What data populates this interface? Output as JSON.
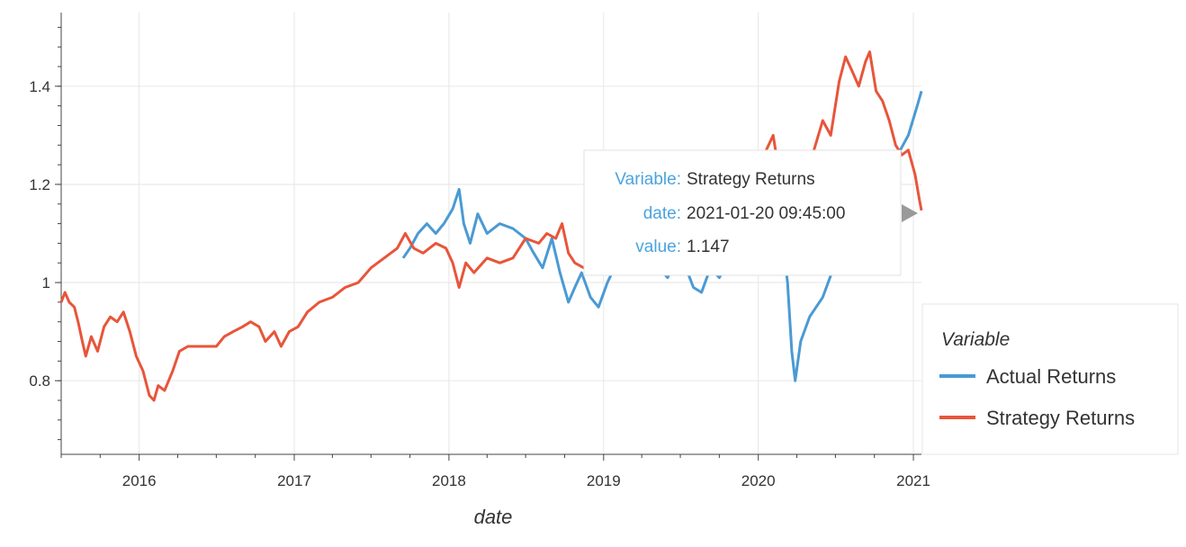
{
  "chart_data": {
    "type": "line",
    "xlabel": "date",
    "ylabel": "",
    "xlim": [
      "2015-07-01",
      "2021-01-20"
    ],
    "ylim": [
      0.65,
      1.55
    ],
    "x_ticks": [
      "2016",
      "2017",
      "2018",
      "2019",
      "2020",
      "2021"
    ],
    "y_ticks": [
      {
        "value": 0.8,
        "label": "0.8"
      },
      {
        "value": 1.0,
        "label": "1"
      },
      {
        "value": 1.2,
        "label": "1.2"
      },
      {
        "value": 1.4,
        "label": "1.4"
      }
    ],
    "grid": true,
    "legend": {
      "title": "Variable",
      "placement": "right"
    },
    "series": [
      {
        "name": "Actual Returns",
        "color": "#4a9ad4",
        "points": [
          [
            "2017-09-15",
            1.05
          ],
          [
            "2017-10-01",
            1.07
          ],
          [
            "2017-10-20",
            1.1
          ],
          [
            "2017-11-10",
            1.12
          ],
          [
            "2017-12-01",
            1.1
          ],
          [
            "2017-12-20",
            1.12
          ],
          [
            "2018-01-10",
            1.15
          ],
          [
            "2018-01-25",
            1.19
          ],
          [
            "2018-02-05",
            1.12
          ],
          [
            "2018-02-20",
            1.08
          ],
          [
            "2018-03-10",
            1.14
          ],
          [
            "2018-04-01",
            1.1
          ],
          [
            "2018-05-01",
            1.12
          ],
          [
            "2018-06-01",
            1.11
          ],
          [
            "2018-07-01",
            1.09
          ],
          [
            "2018-07-20",
            1.06
          ],
          [
            "2018-08-10",
            1.03
          ],
          [
            "2018-09-01",
            1.09
          ],
          [
            "2018-09-20",
            1.02
          ],
          [
            "2018-10-10",
            0.96
          ],
          [
            "2018-10-25",
            0.99
          ],
          [
            "2018-11-10",
            1.02
          ],
          [
            "2018-12-01",
            0.97
          ],
          [
            "2018-12-20",
            0.95
          ],
          [
            "2019-01-10",
            1.0
          ],
          [
            "2019-02-01",
            1.04
          ],
          [
            "2019-03-01",
            1.07
          ],
          [
            "2019-04-01",
            1.08
          ],
          [
            "2019-05-01",
            1.04
          ],
          [
            "2019-06-01",
            1.01
          ],
          [
            "2019-07-01",
            1.06
          ],
          [
            "2019-08-01",
            0.99
          ],
          [
            "2019-08-20",
            0.98
          ],
          [
            "2019-09-10",
            1.03
          ],
          [
            "2019-10-01",
            1.01
          ],
          [
            "2019-11-01",
            1.06
          ],
          [
            "2019-12-01",
            1.08
          ],
          [
            "2020-01-01",
            1.1
          ],
          [
            "2020-01-20",
            1.15
          ],
          [
            "2020-02-10",
            1.18
          ],
          [
            "2020-02-25",
            1.1
          ],
          [
            "2020-03-10",
            1.0
          ],
          [
            "2020-03-20",
            0.86
          ],
          [
            "2020-03-28",
            0.8
          ],
          [
            "2020-04-10",
            0.88
          ],
          [
            "2020-05-01",
            0.93
          ],
          [
            "2020-06-01",
            0.97
          ],
          [
            "2020-07-01",
            1.04
          ],
          [
            "2020-08-01",
            1.08
          ],
          [
            "2020-09-01",
            1.07
          ],
          [
            "2020-10-01",
            1.1
          ],
          [
            "2020-11-01",
            1.18
          ],
          [
            "2020-12-01",
            1.27
          ],
          [
            "2020-12-20",
            1.3
          ],
          [
            "2021-01-10",
            1.36
          ],
          [
            "2021-01-20",
            1.39
          ]
        ]
      },
      {
        "name": "Strategy Returns",
        "color": "#e8553a",
        "points": [
          [
            "2015-07-01",
            0.96
          ],
          [
            "2015-07-10",
            0.98
          ],
          [
            "2015-07-20",
            0.96
          ],
          [
            "2015-08-01",
            0.95
          ],
          [
            "2015-08-10",
            0.92
          ],
          [
            "2015-08-20",
            0.88
          ],
          [
            "2015-08-28",
            0.85
          ],
          [
            "2015-09-10",
            0.89
          ],
          [
            "2015-09-25",
            0.86
          ],
          [
            "2015-10-10",
            0.91
          ],
          [
            "2015-10-25",
            0.93
          ],
          [
            "2015-11-10",
            0.92
          ],
          [
            "2015-11-25",
            0.94
          ],
          [
            "2015-12-10",
            0.9
          ],
          [
            "2015-12-25",
            0.85
          ],
          [
            "2016-01-10",
            0.82
          ],
          [
            "2016-01-25",
            0.77
          ],
          [
            "2016-02-05",
            0.76
          ],
          [
            "2016-02-15",
            0.79
          ],
          [
            "2016-03-01",
            0.78
          ],
          [
            "2016-03-20",
            0.82
          ],
          [
            "2016-04-05",
            0.86
          ],
          [
            "2016-04-25",
            0.87
          ],
          [
            "2016-05-15",
            0.87
          ],
          [
            "2016-07-01",
            0.87
          ],
          [
            "2016-07-20",
            0.89
          ],
          [
            "2016-08-10",
            0.9
          ],
          [
            "2016-09-01",
            0.91
          ],
          [
            "2016-09-20",
            0.92
          ],
          [
            "2016-10-10",
            0.91
          ],
          [
            "2016-10-25",
            0.88
          ],
          [
            "2016-11-15",
            0.9
          ],
          [
            "2016-12-01",
            0.87
          ],
          [
            "2016-12-20",
            0.9
          ],
          [
            "2017-01-10",
            0.91
          ],
          [
            "2017-02-01",
            0.94
          ],
          [
            "2017-03-01",
            0.96
          ],
          [
            "2017-04-01",
            0.97
          ],
          [
            "2017-05-01",
            0.99
          ],
          [
            "2017-06-01",
            1.0
          ],
          [
            "2017-07-01",
            1.03
          ],
          [
            "2017-08-01",
            1.05
          ],
          [
            "2017-09-01",
            1.07
          ],
          [
            "2017-09-20",
            1.1
          ],
          [
            "2017-10-10",
            1.07
          ],
          [
            "2017-11-01",
            1.06
          ],
          [
            "2017-12-01",
            1.08
          ],
          [
            "2017-12-25",
            1.07
          ],
          [
            "2018-01-10",
            1.04
          ],
          [
            "2018-01-25",
            0.99
          ],
          [
            "2018-02-10",
            1.04
          ],
          [
            "2018-03-01",
            1.02
          ],
          [
            "2018-04-01",
            1.05
          ],
          [
            "2018-05-01",
            1.04
          ],
          [
            "2018-06-01",
            1.05
          ],
          [
            "2018-07-01",
            1.09
          ],
          [
            "2018-08-01",
            1.08
          ],
          [
            "2018-08-20",
            1.1
          ],
          [
            "2018-09-10",
            1.09
          ],
          [
            "2018-09-25",
            1.12
          ],
          [
            "2018-10-10",
            1.06
          ],
          [
            "2018-10-25",
            1.04
          ],
          [
            "2018-11-15",
            1.03
          ],
          [
            "2018-12-05",
            1.05
          ],
          [
            "2019-01-01",
            1.07
          ],
          [
            "2019-02-01",
            1.09
          ],
          [
            "2019-03-01",
            1.11
          ],
          [
            "2019-04-01",
            1.08
          ],
          [
            "2019-05-01",
            1.1
          ],
          [
            "2019-06-01",
            1.09
          ],
          [
            "2019-07-01",
            1.12
          ],
          [
            "2019-08-01",
            1.1
          ],
          [
            "2019-09-01",
            1.13
          ],
          [
            "2019-10-01",
            1.14
          ],
          [
            "2019-11-01",
            1.16
          ],
          [
            "2019-12-01",
            1.17
          ],
          [
            "2020-01-01",
            1.23
          ],
          [
            "2020-01-20",
            1.27
          ],
          [
            "2020-02-05",
            1.3
          ],
          [
            "2020-02-20",
            1.22
          ],
          [
            "2020-03-10",
            1.1
          ],
          [
            "2020-03-25",
            1.05
          ],
          [
            "2020-04-10",
            1.12
          ],
          [
            "2020-05-01",
            1.24
          ],
          [
            "2020-06-01",
            1.33
          ],
          [
            "2020-06-20",
            1.3
          ],
          [
            "2020-07-10",
            1.41
          ],
          [
            "2020-07-25",
            1.46
          ],
          [
            "2020-08-10",
            1.43
          ],
          [
            "2020-08-25",
            1.4
          ],
          [
            "2020-09-10",
            1.45
          ],
          [
            "2020-09-20",
            1.47
          ],
          [
            "2020-10-05",
            1.39
          ],
          [
            "2020-10-20",
            1.37
          ],
          [
            "2020-11-05",
            1.33
          ],
          [
            "2020-11-20",
            1.28
          ],
          [
            "2020-12-05",
            1.26
          ],
          [
            "2020-12-20",
            1.27
          ],
          [
            "2021-01-05",
            1.22
          ],
          [
            "2021-01-15",
            1.17
          ],
          [
            "2021-01-20",
            1.147
          ]
        ]
      }
    ],
    "tooltip": {
      "rows": [
        {
          "key": "Variable:",
          "value": "Strategy Returns"
        },
        {
          "key": "date:",
          "value": "2021-01-20 09:45:00"
        },
        {
          "key": "value:",
          "value": "1.147"
        }
      ]
    }
  }
}
